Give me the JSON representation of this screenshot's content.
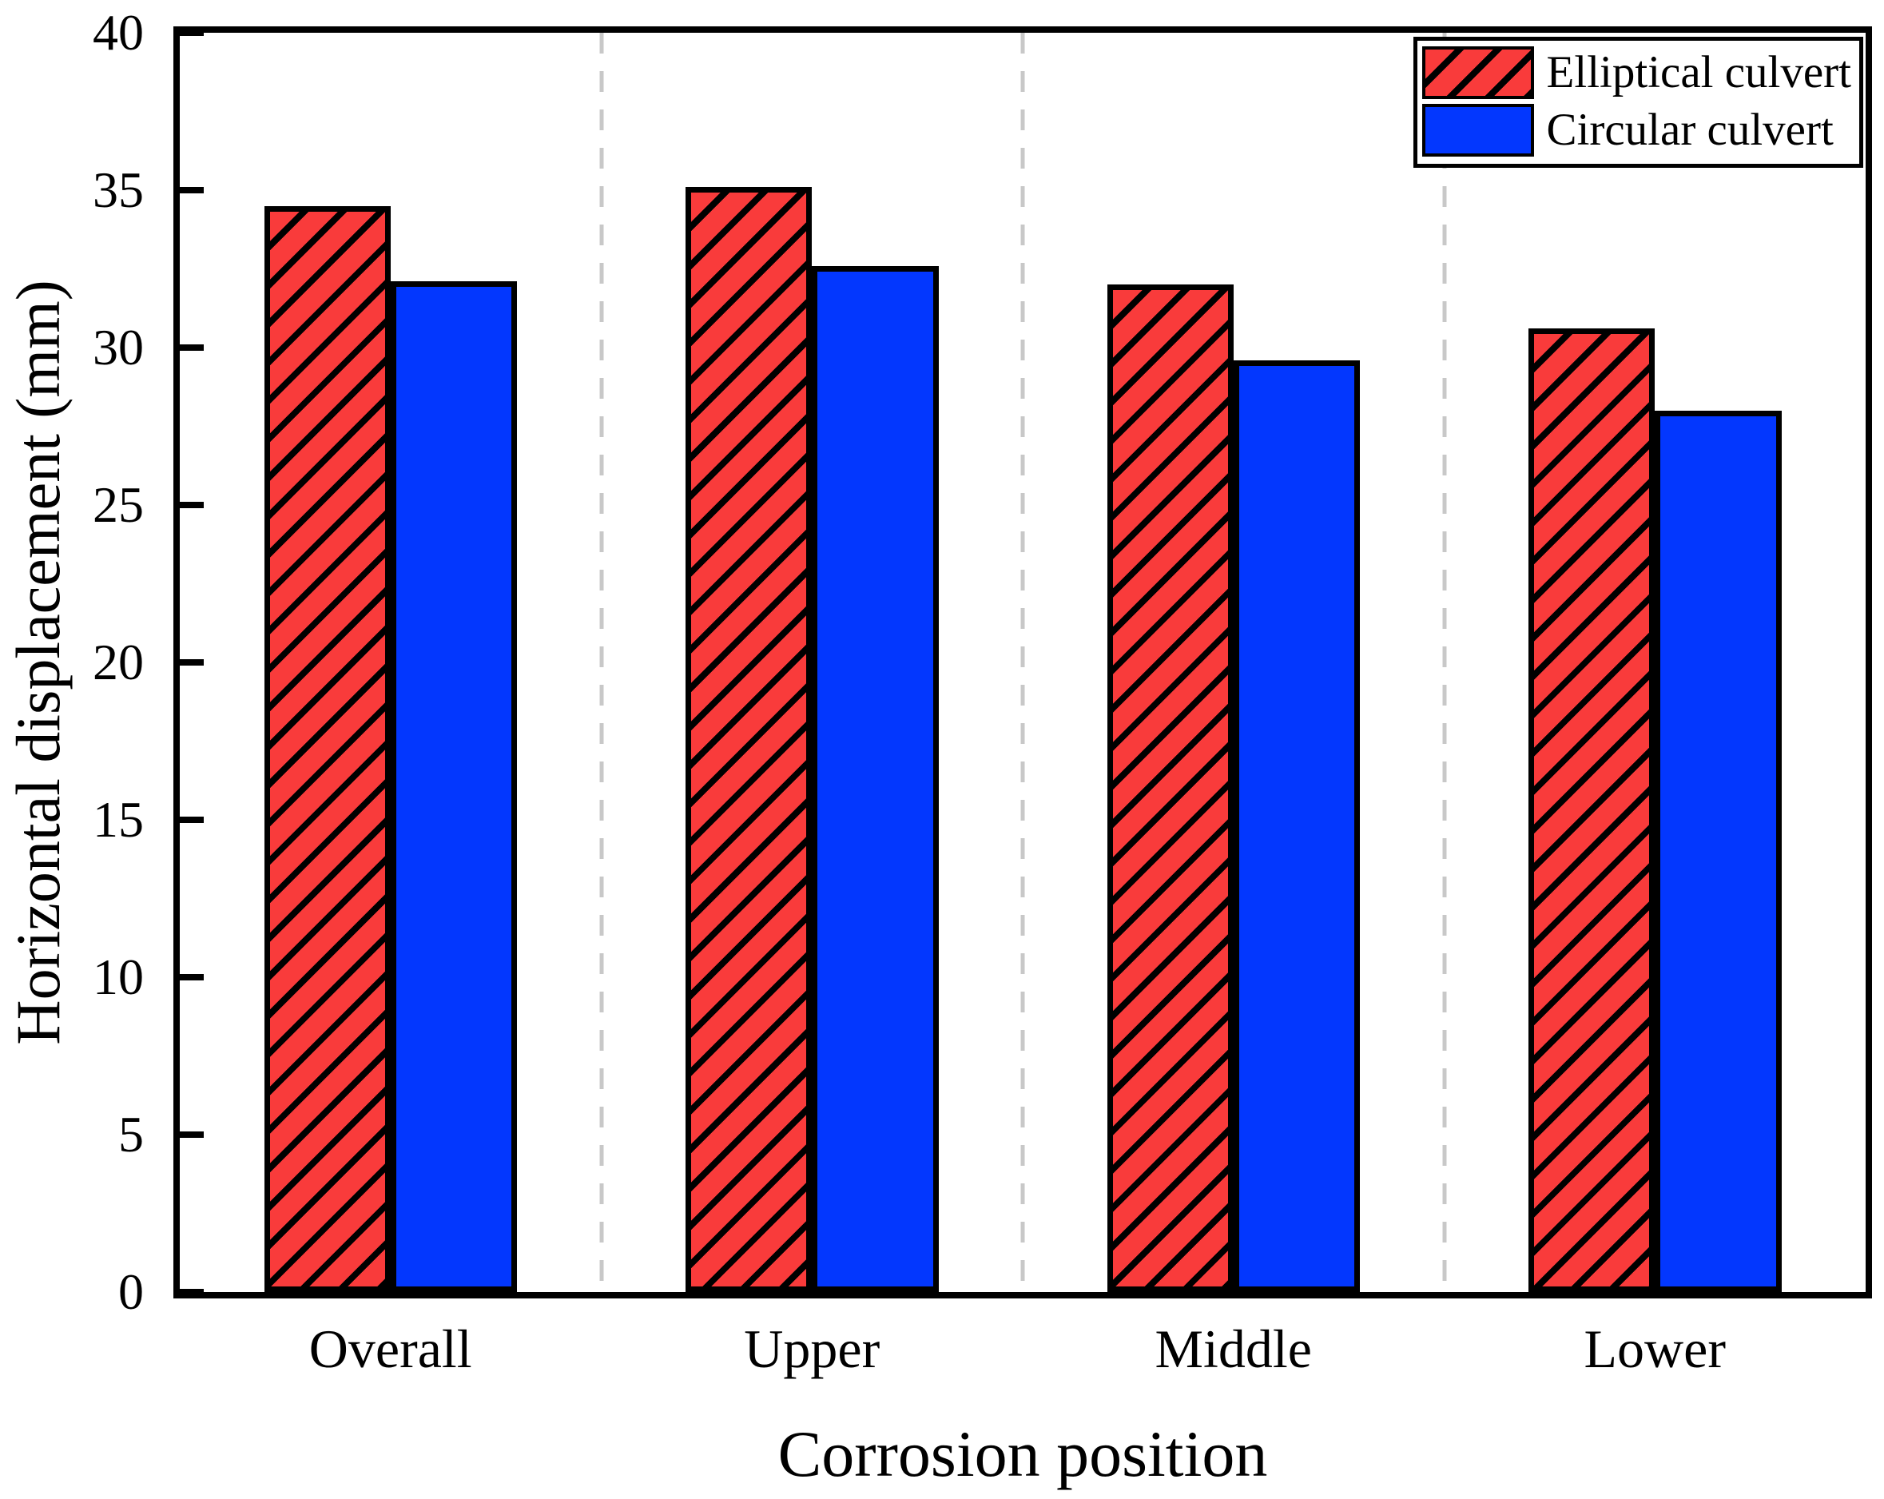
{
  "chart_data": {
    "type": "bar",
    "title": "",
    "xlabel": "Corrosion position",
    "ylabel": "Horizontal displacement (mm)",
    "categories": [
      "Overall",
      "Upper",
      "Middle",
      "Lower"
    ],
    "series": [
      {
        "name": "Elliptical culvert",
        "color": "#f93b3b",
        "hatch": "/",
        "values": [
          34.5,
          35.1,
          32.0,
          30.6
        ]
      },
      {
        "name": "Circular culvert",
        "color": "#0337fe",
        "hatch": "none",
        "values": [
          32.1,
          32.6,
          29.6,
          28.0
        ]
      }
    ],
    "ylim": [
      0,
      40
    ],
    "yticks": [
      0,
      5,
      10,
      15,
      20,
      25,
      30,
      35,
      40
    ],
    "grid": "dashed vertical separators at group boundaries",
    "gridline_color": "#c8c8c8",
    "legend_position": "top-right",
    "legend_entries": [
      "Elliptical culvert",
      "Circular culvert"
    ]
  },
  "colors": {
    "background": "#ffffff",
    "axis": "#000000",
    "bar_red": "#f93b3b",
    "bar_blue": "#0337fe",
    "gridline": "#c8c8c8"
  }
}
